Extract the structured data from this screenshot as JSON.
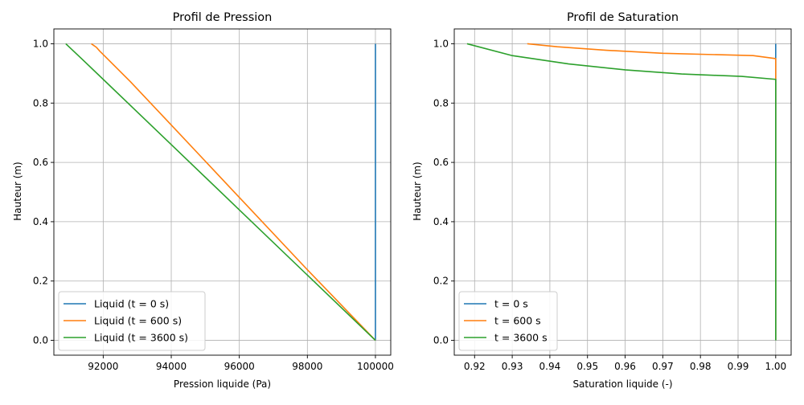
{
  "chart_data": [
    {
      "type": "line",
      "title": "Profil de Pression",
      "xlabel": "Pression liquide (Pa)",
      "ylabel": "Hauteur (m)",
      "xlim": [
        90550,
        100450
      ],
      "ylim": [
        -0.05,
        1.05
      ],
      "xticks": [
        92000,
        94000,
        96000,
        98000,
        100000
      ],
      "xtick_labels": [
        "92000",
        "94000",
        "96000",
        "98000",
        "100000"
      ],
      "yticks": [
        0.0,
        0.2,
        0.4,
        0.6,
        0.8,
        1.0
      ],
      "ytick_labels": [
        "0.0",
        "0.2",
        "0.4",
        "0.6",
        "0.8",
        "1.0"
      ],
      "grid": true,
      "legend_position": "lower-left",
      "series": [
        {
          "name": "Liquid (t = 0 s)",
          "color": "#1f77b4",
          "points": [
            [
              100000,
              0.0
            ],
            [
              100000,
              1.0
            ]
          ]
        },
        {
          "name": "Liquid (t = 600 s)",
          "color": "#ff7f0e",
          "points": [
            [
              100000,
              0.0
            ],
            [
              98000,
              0.238
            ],
            [
              96000,
              0.482
            ],
            [
              94000,
              0.726
            ],
            [
              92800,
              0.872
            ],
            [
              91900,
              0.975
            ],
            [
              91800,
              0.988
            ],
            [
              91650,
              1.0
            ]
          ]
        },
        {
          "name": "Liquid (t = 3600 s)",
          "color": "#2ca02c",
          "points": [
            [
              100000,
              0.0
            ],
            [
              98000,
              0.22
            ],
            [
              96000,
              0.44
            ],
            [
              94000,
              0.66
            ],
            [
              92000,
              0.88
            ],
            [
              91400,
              0.946
            ],
            [
              90900,
              1.0
            ]
          ]
        }
      ]
    },
    {
      "type": "line",
      "title": "Profil de Saturation",
      "xlabel": "Saturation liquide (-)",
      "ylabel": "Hauteur (m)",
      "xlim": [
        0.9146,
        1.0041
      ],
      "ylim": [
        -0.05,
        1.05
      ],
      "xticks": [
        0.92,
        0.93,
        0.94,
        0.95,
        0.96,
        0.97,
        0.98,
        0.99,
        1.0
      ],
      "xtick_labels": [
        "0.92",
        "0.93",
        "0.94",
        "0.95",
        "0.96",
        "0.97",
        "0.98",
        "0.99",
        "1.00"
      ],
      "yticks": [
        0.0,
        0.2,
        0.4,
        0.6,
        0.8,
        1.0
      ],
      "ytick_labels": [
        "0.0",
        "0.2",
        "0.4",
        "0.6",
        "0.8",
        "1.0"
      ],
      "grid": true,
      "legend_position": "lower-left",
      "series": [
        {
          "name": "t = 0 s",
          "color": "#1f77b4",
          "points": [
            [
              1.0,
              0.0
            ],
            [
              1.0,
              1.0
            ]
          ]
        },
        {
          "name": "t = 600 s",
          "color": "#ff7f0e",
          "points": [
            [
              1.0,
              0.0
            ],
            [
              1.0,
              0.88
            ],
            [
              1.0,
              0.95
            ],
            [
              0.994,
              0.96
            ],
            [
              0.97,
              0.968
            ],
            [
              0.955,
              0.978
            ],
            [
              0.942,
              0.99
            ],
            [
              0.934,
              1.0
            ]
          ]
        },
        {
          "name": "t = 3600 s",
          "color": "#2ca02c",
          "points": [
            [
              1.0,
              0.0
            ],
            [
              1.0,
              0.88
            ],
            [
              0.991,
              0.89
            ],
            [
              0.975,
              0.898
            ],
            [
              0.96,
              0.912
            ],
            [
              0.945,
              0.932
            ],
            [
              0.93,
              0.96
            ],
            [
              0.918,
              1.0
            ]
          ]
        }
      ]
    }
  ]
}
